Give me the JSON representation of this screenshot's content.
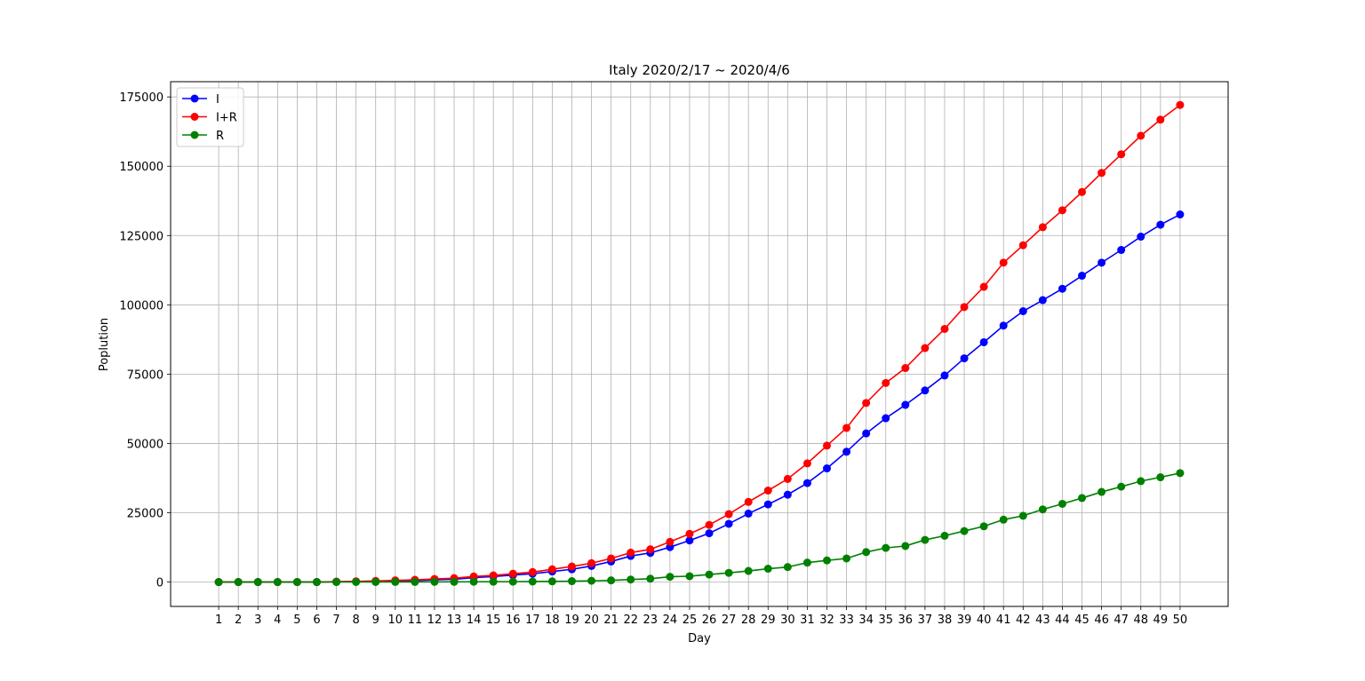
{
  "chart_data": {
    "type": "line",
    "title": "Italy 2020/2/17 ~ 2020/4/6",
    "xlabel": "Day",
    "ylabel": "Poplution",
    "x": [
      1,
      2,
      3,
      4,
      5,
      6,
      7,
      8,
      9,
      10,
      11,
      12,
      13,
      14,
      15,
      16,
      17,
      18,
      19,
      20,
      21,
      22,
      23,
      24,
      25,
      26,
      27,
      28,
      29,
      30,
      31,
      32,
      33,
      34,
      35,
      36,
      37,
      38,
      39,
      40,
      41,
      42,
      43,
      44,
      45,
      46,
      47,
      48,
      49,
      50
    ],
    "xlim": [
      -1.45,
      52.45
    ],
    "ylim": [
      -8800,
      180500
    ],
    "yticks": [
      0,
      25000,
      50000,
      75000,
      100000,
      125000,
      150000,
      175000
    ],
    "grid": true,
    "legend_position": "top-left",
    "series": [
      {
        "name": "I",
        "color": "#0000ff",
        "values": [
          3,
          3,
          3,
          3,
          3,
          3,
          100,
          200,
          300,
          400,
          500,
          800,
          1000,
          1600,
          2000,
          2500,
          3000,
          3800,
          4600,
          5800,
          7400,
          9400,
          10500,
          12600,
          15000,
          17600,
          21000,
          24700,
          28000,
          31500,
          35700,
          41000,
          47000,
          53600,
          59100,
          63900,
          69100,
          74500,
          80700,
          86500,
          92500,
          97700,
          101700,
          105800,
          110500,
          115200,
          119800,
          124600,
          128900,
          132600
        ]
      },
      {
        "name": "I+R",
        "color": "#ff0000",
        "values": [
          3,
          3,
          3,
          3,
          3,
          3,
          150,
          250,
          400,
          600,
          800,
          1100,
          1400,
          2000,
          2400,
          3000,
          3600,
          4600,
          5600,
          6800,
          8500,
          10600,
          11800,
          14500,
          17400,
          20600,
          24500,
          28900,
          33000,
          37200,
          42800,
          49200,
          55600,
          64600,
          71800,
          77200,
          84400,
          91300,
          99200,
          106500,
          115200,
          121500,
          128000,
          134100,
          140700,
          147600,
          154300,
          161000,
          166800,
          172100
        ]
      },
      {
        "name": "R",
        "color": "#008000",
        "values": [
          0,
          0,
          0,
          0,
          0,
          0,
          5,
          10,
          20,
          30,
          40,
          50,
          60,
          90,
          110,
          130,
          180,
          230,
          320,
          450,
          600,
          900,
          1200,
          1900,
          2100,
          2700,
          3300,
          4000,
          4800,
          5400,
          7000,
          7800,
          8500,
          10800,
          12300,
          13000,
          15200,
          16700,
          18400,
          20100,
          22500,
          23900,
          26200,
          28200,
          30300,
          32500,
          34400,
          36400,
          37800,
          39300
        ]
      }
    ]
  }
}
